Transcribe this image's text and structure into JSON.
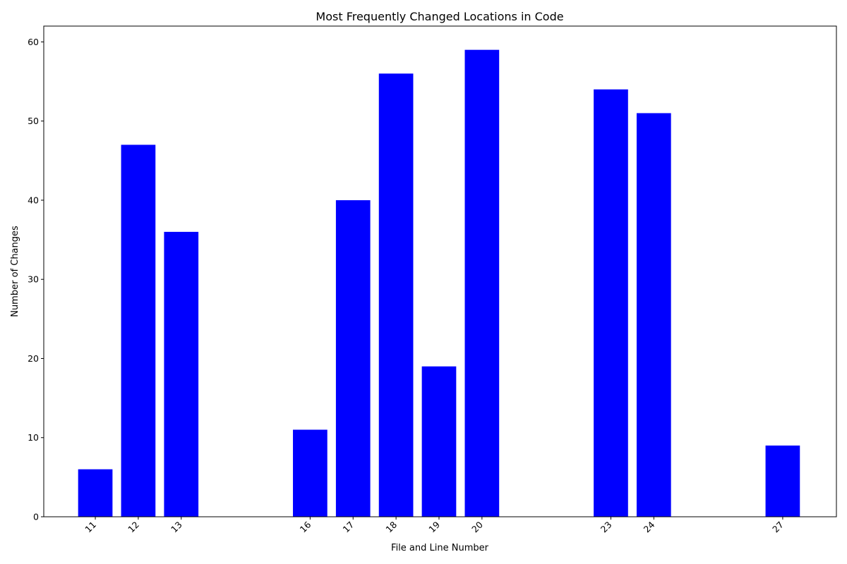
{
  "chart_data": {
    "type": "bar",
    "title": "Most Frequently Changed Locations in Code",
    "xlabel": "File and Line Number",
    "ylabel": "Number of Changes",
    "x": [
      11,
      12,
      13,
      16,
      17,
      18,
      19,
      20,
      23,
      24,
      27
    ],
    "values": [
      6,
      47,
      36,
      11,
      40,
      56,
      19,
      59,
      54,
      51,
      9
    ],
    "x_tick_labels": [
      "11",
      "12",
      "13",
      "16",
      "17",
      "18",
      "19",
      "20",
      "23",
      "24",
      "27"
    ],
    "y_ticks": [
      0,
      10,
      20,
      30,
      40,
      50,
      60
    ],
    "xlim": [
      9.8,
      28.25
    ],
    "ylim": [
      0,
      62
    ],
    "bar_color": "#0000ff",
    "grid": false,
    "legend": "none"
  }
}
